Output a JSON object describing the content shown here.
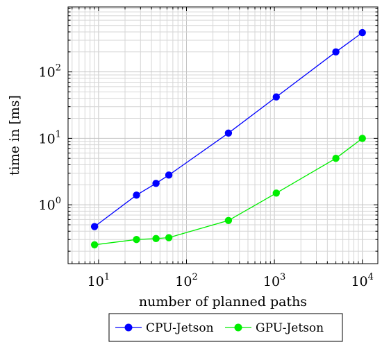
{
  "chart_data": {
    "type": "line",
    "xlabel": "number of planned paths",
    "ylabel": "time in [ms]",
    "xscale": "log",
    "yscale": "log",
    "xlim": [
      4.5,
      15000
    ],
    "ylim": [
      0.13,
      950
    ],
    "grid": true,
    "legend_position": "bottom",
    "x_ticks": [
      {
        "base": "10",
        "exp": "1",
        "value": 10
      },
      {
        "base": "10",
        "exp": "2",
        "value": 100
      },
      {
        "base": "10",
        "exp": "3",
        "value": 1000
      },
      {
        "base": "10",
        "exp": "4",
        "value": 10000
      }
    ],
    "y_ticks": [
      {
        "base": "10",
        "exp": "0",
        "value": 1
      },
      {
        "base": "10",
        "exp": "1",
        "value": 10
      },
      {
        "base": "10",
        "exp": "2",
        "value": 100
      }
    ],
    "x": [
      9,
      27,
      45,
      63,
      300,
      1050,
      5000,
      10000
    ],
    "series": [
      {
        "name": "CPU-Jetson",
        "color": "#0000ff",
        "values": [
          0.47,
          1.4,
          2.1,
          2.8,
          12,
          42,
          200,
          390
        ]
      },
      {
        "name": "GPU-Jetson",
        "color": "#00ee00",
        "values": [
          0.25,
          0.3,
          0.31,
          0.32,
          0.58,
          1.5,
          5,
          10
        ]
      }
    ]
  }
}
